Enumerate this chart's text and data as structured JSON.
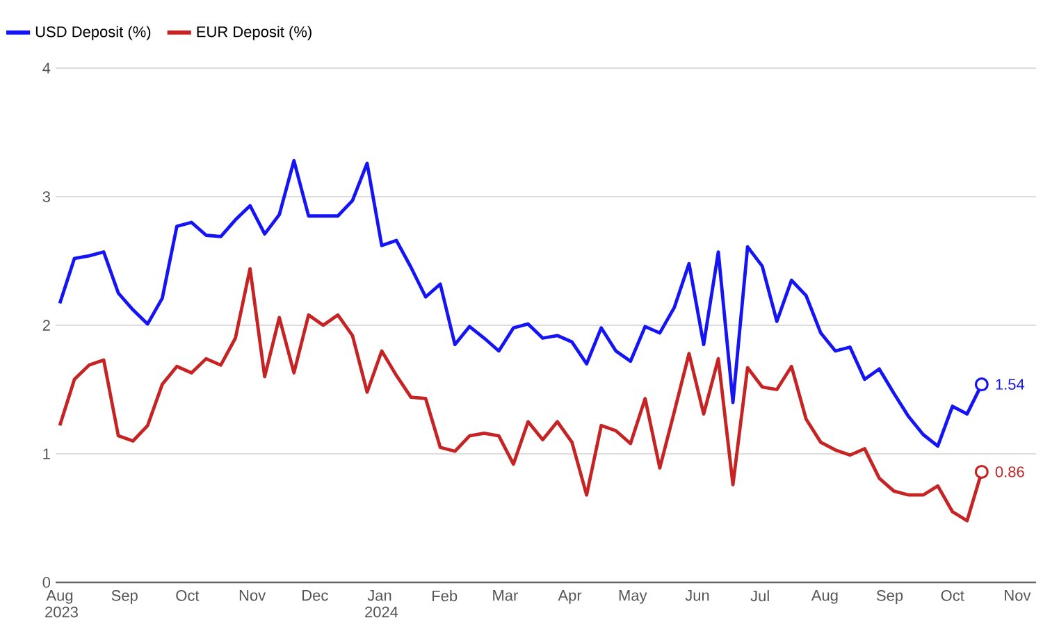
{
  "chart_data": {
    "type": "line",
    "x": [
      "2023-08-01",
      "2023-08-08",
      "2023-08-15",
      "2023-08-22",
      "2023-08-29",
      "2023-09-05",
      "2023-09-12",
      "2023-09-19",
      "2023-09-26",
      "2023-10-03",
      "2023-10-10",
      "2023-10-17",
      "2023-10-24",
      "2023-10-31",
      "2023-11-07",
      "2023-11-14",
      "2023-11-21",
      "2023-11-28",
      "2023-12-05",
      "2023-12-12",
      "2023-12-19",
      "2023-12-26",
      "2024-01-02",
      "2024-01-09",
      "2024-01-16",
      "2024-01-23",
      "2024-01-30",
      "2024-02-06",
      "2024-02-13",
      "2024-02-20",
      "2024-02-27",
      "2024-03-05",
      "2024-03-12",
      "2024-03-19",
      "2024-03-26",
      "2024-04-02",
      "2024-04-09",
      "2024-04-16",
      "2024-04-23",
      "2024-04-30",
      "2024-05-07",
      "2024-05-14",
      "2024-05-21",
      "2024-05-28",
      "2024-06-04",
      "2024-06-11",
      "2024-06-18",
      "2024-06-25",
      "2024-07-02",
      "2024-07-09",
      "2024-07-16",
      "2024-07-23",
      "2024-07-30",
      "2024-08-06",
      "2024-08-13",
      "2024-08-20",
      "2024-08-27",
      "2024-09-03",
      "2024-09-10",
      "2024-09-17",
      "2024-09-24",
      "2024-10-01",
      "2024-10-08",
      "2024-10-15"
    ],
    "series": [
      {
        "name": "USD Deposit (%)",
        "color": "#1414f5",
        "values": [
          2.17,
          2.52,
          2.54,
          2.57,
          2.25,
          2.12,
          2.01,
          2.21,
          2.77,
          2.8,
          2.7,
          2.69,
          2.82,
          2.93,
          2.71,
          2.86,
          3.28,
          2.85,
          2.85,
          2.85,
          2.97,
          3.26,
          2.62,
          2.66,
          2.45,
          2.22,
          2.32,
          1.85,
          1.99,
          1.9,
          1.8,
          1.98,
          2.01,
          1.9,
          1.92,
          1.87,
          1.7,
          1.98,
          1.8,
          1.72,
          1.99,
          1.94,
          2.14,
          2.48,
          1.85,
          2.57,
          1.4,
          2.61,
          2.46,
          2.03,
          2.35,
          2.23,
          1.94,
          1.8,
          1.83,
          1.58,
          1.66,
          1.47,
          1.29,
          1.15,
          1.06,
          1.37,
          1.31,
          1.54
        ],
        "value_labels": [
          null,
          null,
          null,
          null,
          null,
          null,
          null,
          null,
          null,
          null,
          null,
          null,
          null,
          null,
          null,
          null,
          null,
          null,
          null,
          null,
          null,
          null,
          null,
          null,
          null,
          null,
          null,
          null,
          null,
          null,
          null,
          null,
          null,
          null,
          null,
          null,
          null,
          null,
          null,
          null,
          null,
          null,
          null,
          null,
          null,
          null,
          null,
          null,
          null,
          null,
          null,
          null,
          null,
          null,
          null,
          null,
          null,
          null,
          null,
          null,
          null,
          null,
          null,
          "1.54"
        ]
      },
      {
        "name": "EUR Deposit (%)",
        "color": "#c62424",
        "values": [
          1.22,
          1.58,
          1.69,
          1.73,
          1.14,
          1.1,
          1.22,
          1.54,
          1.68,
          1.63,
          1.74,
          1.69,
          1.9,
          2.44,
          1.6,
          2.06,
          1.63,
          2.08,
          2.0,
          2.08,
          1.92,
          1.48,
          1.8,
          1.61,
          1.44,
          1.43,
          1.05,
          1.02,
          1.14,
          1.16,
          1.14,
          0.92,
          1.25,
          1.11,
          1.25,
          1.09,
          0.68,
          1.22,
          1.18,
          1.08,
          1.43,
          0.89,
          1.33,
          1.78,
          1.31,
          1.74,
          0.76,
          1.67,
          1.52,
          1.5,
          1.68,
          1.27,
          1.09,
          1.03,
          0.99,
          1.04,
          0.81,
          0.71,
          0.68,
          0.68,
          0.75,
          0.55,
          0.48,
          0.86
        ],
        "value_labels": [
          null,
          null,
          null,
          null,
          null,
          null,
          null,
          null,
          null,
          null,
          null,
          null,
          null,
          null,
          null,
          null,
          null,
          null,
          null,
          null,
          null,
          null,
          null,
          null,
          null,
          null,
          null,
          null,
          null,
          null,
          null,
          null,
          null,
          null,
          null,
          null,
          null,
          null,
          null,
          null,
          null,
          null,
          null,
          null,
          null,
          null,
          null,
          null,
          null,
          null,
          null,
          null,
          null,
          null,
          null,
          null,
          null,
          null,
          null,
          null,
          null,
          null,
          null,
          "0.86"
        ]
      }
    ],
    "xlim": [
      "2023-07-30",
      "2024-11-10"
    ],
    "xticks": [
      {
        "value": "2023-08-01",
        "label": "Aug 2023"
      },
      {
        "value": "2023-09-01",
        "label": "Sep"
      },
      {
        "value": "2023-10-01",
        "label": "Oct"
      },
      {
        "value": "2023-11-01",
        "label": "Nov"
      },
      {
        "value": "2023-12-01",
        "label": "Dec"
      },
      {
        "value": "2024-01-01",
        "label": "Jan 2024"
      },
      {
        "value": "2024-02-01",
        "label": "Feb"
      },
      {
        "value": "2024-03-01",
        "label": "Mar"
      },
      {
        "value": "2024-04-01",
        "label": "Apr"
      },
      {
        "value": "2024-05-01",
        "label": "May"
      },
      {
        "value": "2024-06-01",
        "label": "Jun"
      },
      {
        "value": "2024-07-01",
        "label": "Jul"
      },
      {
        "value": "2024-08-01",
        "label": "Aug"
      },
      {
        "value": "2024-09-01",
        "label": "Sep"
      },
      {
        "value": "2024-10-01",
        "label": "Oct"
      },
      {
        "value": "2024-11-01",
        "label": "Nov"
      }
    ],
    "ylim": [
      0,
      4
    ],
    "yticks": [
      0,
      1,
      2,
      3,
      4
    ],
    "grid": "y",
    "legend": "top left",
    "line_style": "solid"
  }
}
